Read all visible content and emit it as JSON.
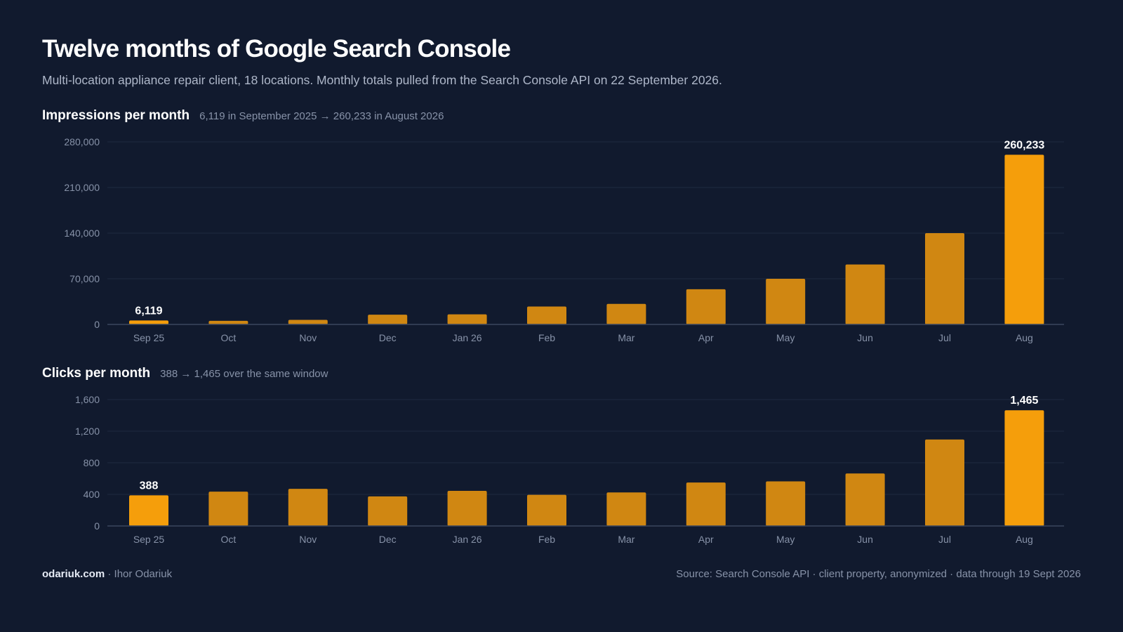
{
  "title": "Twelve months of Google Search Console",
  "subtitle": "Multi-location appliance repair client, 18 locations. Monthly totals pulled from the Search Console API on 22 September 2026.",
  "footer": {
    "site": "odariuk.com",
    "separator": " · ",
    "author": "Ihor Odariuk",
    "source": "Source: Search Console API · client property, anonymized · data through 19 Sept 2026"
  },
  "colors": {
    "background": "#111a2e",
    "bar": "#d08712",
    "bar_highlight": "#f59e0b",
    "grid": "#1f2a40",
    "axis": "#3a465e",
    "tick_text": "#8792a8",
    "label_text": "#ffffff"
  },
  "chart_data": [
    {
      "type": "bar",
      "title": "Impressions per month",
      "note": "6,119 in September 2025 → 260,233 in August 2026",
      "categories": [
        "Sep 25",
        "Oct",
        "Nov",
        "Dec",
        "Jan 26",
        "Feb",
        "Mar",
        "Apr",
        "May",
        "Jun",
        "Jul",
        "Aug"
      ],
      "values": [
        6119,
        5500,
        7000,
        15000,
        15500,
        27500,
        31500,
        54000,
        70000,
        92000,
        140000,
        260233
      ],
      "highlight": [
        0,
        11
      ],
      "data_labels": [
        {
          "index": 0,
          "text": "6,119"
        },
        {
          "index": 11,
          "text": "260,233"
        }
      ],
      "ylim": [
        0,
        280000
      ],
      "yticks": [
        0,
        70000,
        140000,
        210000,
        280000
      ],
      "ytick_labels": [
        "0",
        "70,000",
        "140,000",
        "210,000",
        "280,000"
      ],
      "grid": true
    },
    {
      "type": "bar",
      "title": "Clicks per month",
      "note": "388 → 1,465 over the same window",
      "categories": [
        "Sep 25",
        "Oct",
        "Nov",
        "Dec",
        "Jan 26",
        "Feb",
        "Mar",
        "Apr",
        "May",
        "Jun",
        "Jul",
        "Aug"
      ],
      "values": [
        388,
        435,
        470,
        375,
        445,
        395,
        425,
        550,
        565,
        665,
        1095,
        1465
      ],
      "highlight": [
        0,
        11
      ],
      "data_labels": [
        {
          "index": 0,
          "text": "388"
        },
        {
          "index": 11,
          "text": "1,465"
        }
      ],
      "ylim": [
        0,
        1600
      ],
      "yticks": [
        0,
        400,
        800,
        1200,
        1600
      ],
      "ytick_labels": [
        "0",
        "400",
        "800",
        "1,200",
        "1,600"
      ],
      "grid": true
    }
  ]
}
